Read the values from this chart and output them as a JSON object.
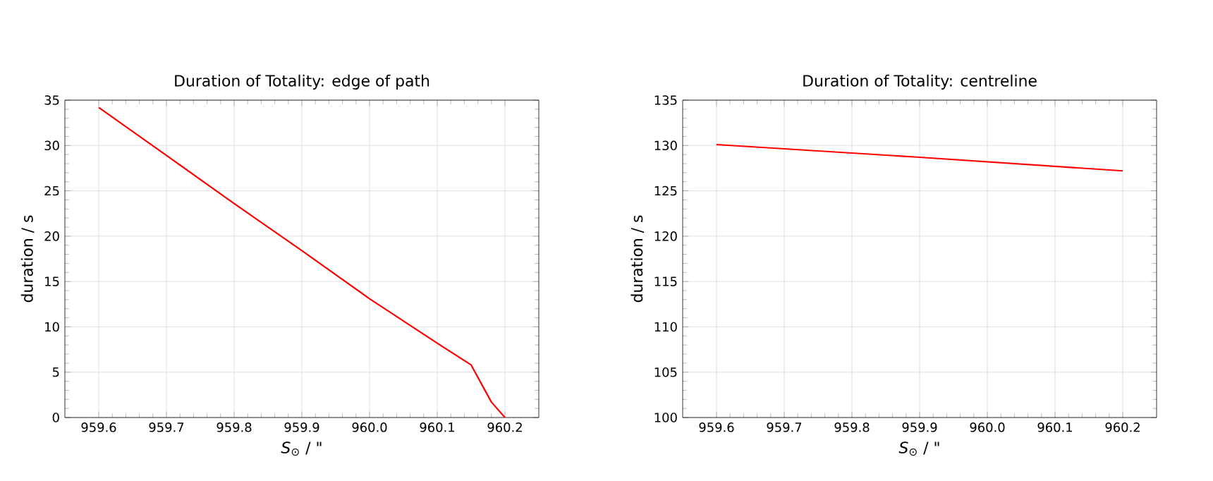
{
  "chart_data": [
    {
      "type": "line",
      "title": "Duration of Totality: edge of path",
      "xlabel": "*S*$_{⊙}$ / \"",
      "ylabel": "duration / s",
      "x": [
        959.6,
        959.7,
        959.8,
        959.9,
        960.0,
        960.1,
        960.15,
        960.18,
        960.2
      ],
      "series": [
        {
          "color": "#ff0000",
          "values": [
            34.2,
            28.9,
            23.6,
            18.4,
            13.1,
            8.2,
            5.8,
            1.7,
            0
          ]
        }
      ],
      "xlim": [
        959.55,
        960.25
      ],
      "xticks": [
        959.6,
        959.7,
        959.8,
        959.9,
        {
          "value": 960,
          "label": "960.0"
        },
        960.1,
        960.2
      ],
      "ylim": [
        0,
        35
      ],
      "yticks": [
        0,
        5,
        10,
        15,
        20,
        25,
        30,
        35
      ],
      "grid": true
    },
    {
      "type": "line",
      "title": "Duration of Totality: centreline",
      "xlabel": "*S*$_{⊙}$ / \"",
      "ylabel": "duration / s",
      "x": [
        959.6,
        959.9,
        960.2
      ],
      "series": [
        {
          "color": "#ff0000",
          "values": [
            130.1,
            128.7,
            127.2
          ]
        }
      ],
      "xlim": [
        959.55,
        960.25
      ],
      "xticks": [
        959.6,
        959.7,
        959.8,
        959.9,
        {
          "value": 960,
          "label": "960.0"
        },
        960.1,
        960.2
      ],
      "ylim": [
        100,
        135
      ],
      "yticks": [
        100,
        105,
        110,
        115,
        120,
        125,
        130,
        135
      ],
      "grid": true
    }
  ]
}
